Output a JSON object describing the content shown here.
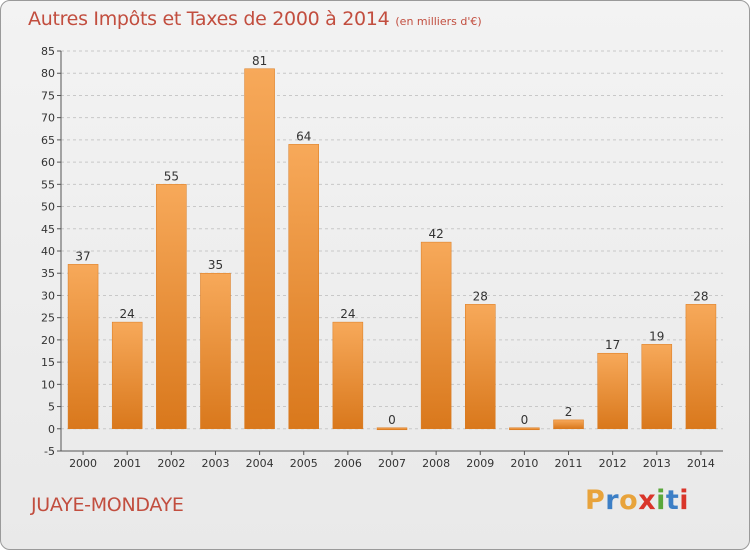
{
  "header": {
    "title": "Autres Impôts et Taxes de 2000 à 2014",
    "subtitle": "(en milliers d'€)"
  },
  "footer": {
    "commune": "JUAYE-MONDAYE",
    "brand": {
      "letters": [
        "P",
        "r",
        "o",
        "x",
        "i",
        "t",
        "i"
      ],
      "colors": [
        "#e8a33b",
        "#3c7fc6",
        "#e8a33b",
        "#d9352a",
        "#5aa83c",
        "#3c7fc6",
        "#d9352a"
      ]
    }
  },
  "colors": {
    "title": "#c24e3f",
    "bar_light": "#f7a95a",
    "bar_dark": "#d9781c",
    "grid": "#c8c8c8"
  },
  "chart_data": {
    "type": "bar",
    "categories": [
      "2000",
      "2001",
      "2002",
      "2003",
      "2004",
      "2005",
      "2006",
      "2007",
      "2008",
      "2009",
      "2010",
      "2011",
      "2012",
      "2013",
      "2014"
    ],
    "values": [
      37,
      24,
      55,
      35,
      81,
      64,
      24,
      0,
      42,
      28,
      0,
      2,
      17,
      19,
      28
    ],
    "data_labels": [
      "37",
      "24",
      "55",
      "35",
      "81",
      "64",
      "24",
      "0",
      "42",
      "28",
      "0",
      "2",
      "17",
      "19",
      "28"
    ],
    "title": "Autres Impôts et Taxes de 2000 à 2014",
    "ylim": [
      -5,
      85
    ],
    "yticks": [
      -5,
      0,
      5,
      10,
      15,
      20,
      25,
      30,
      35,
      40,
      45,
      50,
      55,
      60,
      65,
      70,
      75,
      80,
      85
    ],
    "grid": true
  }
}
